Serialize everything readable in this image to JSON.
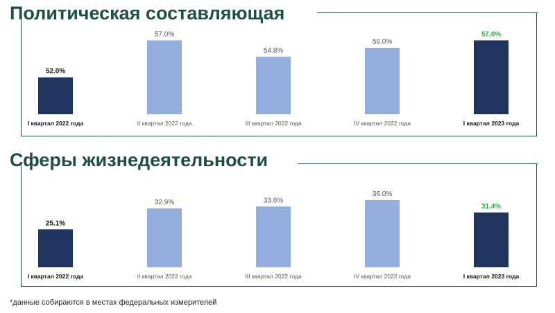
{
  "titles": {
    "political": "Политическая составляющая",
    "spheres": "Сферы жизнедеятельности"
  },
  "footnote": "*данные собираются в местах федеральных измерителей",
  "colors": {
    "dark_bar": "#1f345f",
    "light_bar": "#93aedd",
    "dark_label": "#111111",
    "light_label": "#555555",
    "highlight_label": "#2eaa4a",
    "accent_line": "#1f4e45"
  },
  "chart_data": [
    {
      "type": "bar",
      "title": "Политическая составляющая",
      "categories": [
        "I квартал 2022 года",
        "II квартал 2022 года",
        "III квартал 2022 года",
        "IV квартал 2022 года",
        "I квартал 2023 года"
      ],
      "values": [
        52.0,
        57.0,
        54.8,
        56.0,
        57.0
      ],
      "value_labels": [
        "52.0%",
        "57.0%",
        "54.8%",
        "56.0%",
        "57.0%"
      ],
      "bar_styles": [
        "dark",
        "light",
        "light",
        "light",
        "dark"
      ],
      "label_styles": [
        "dark",
        "light",
        "light",
        "light",
        "highlight"
      ],
      "ylim": [
        47,
        57.5
      ]
    },
    {
      "type": "bar",
      "title": "Сферы жизнедеятельности",
      "categories": [
        "I квартал 2022 года",
        "II квартал 2022 года",
        "III квартал 2022 года",
        "IV квартал 2022 года",
        "I квартал 2023 года"
      ],
      "values": [
        25.1,
        32.9,
        33.6,
        36.0,
        31.4
      ],
      "value_labels": [
        "25.1%",
        "32.9%",
        "33.6%",
        "36.0%",
        "31.4%"
      ],
      "bar_styles": [
        "dark",
        "light",
        "light",
        "light",
        "dark"
      ],
      "label_styles": [
        "dark",
        "light",
        "light",
        "light",
        "highlight"
      ],
      "ylim": [
        11,
        36.5
      ]
    }
  ]
}
